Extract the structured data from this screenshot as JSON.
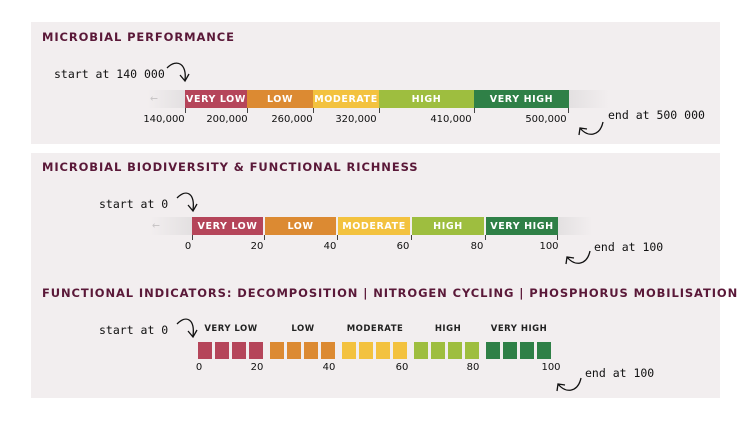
{
  "colors": {
    "very_low": "#b5455a",
    "low": "#dc8a32",
    "moderate": "#f3c23f",
    "high": "#9ebe3f",
    "very_high": "#2f8047",
    "title": "#5a1838",
    "panel_bg": "#f2eeef"
  },
  "categories": {
    "very_low": "VERY LOW",
    "low": "LOW",
    "moderate": "MODERATE",
    "high": "HIGH",
    "very_high": "VERY HIGH"
  },
  "microbial_performance": {
    "title": "MICROBIAL PERFORMANCE",
    "start_note": "start at 140 000",
    "end_note": "end at 500 000",
    "ticks": [
      "140,000",
      "200,000",
      "260,000",
      "320,000",
      "410,000",
      "500,000"
    ]
  },
  "biodiversity": {
    "title": "MICROBIAL BIODIVERSITY & FUNCTIONAL RICHNESS",
    "start_note": "start at 0",
    "end_note": "end at 100",
    "ticks": [
      "0",
      "20",
      "40",
      "60",
      "80",
      "100"
    ]
  },
  "functional_indicators": {
    "title": "FUNCTIONAL INDICATORS: DECOMPOSITION | NITROGEN CYCLING | PHOSPHORUS MOBILISATION",
    "start_note": "start at 0",
    "end_note": "end at 100",
    "ticks": [
      "0",
      "20",
      "40",
      "60",
      "80",
      "100"
    ]
  }
}
